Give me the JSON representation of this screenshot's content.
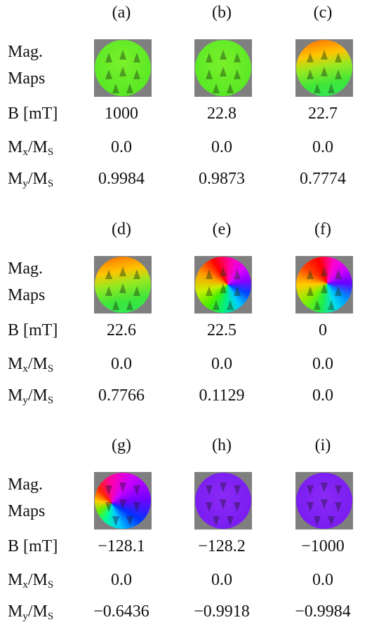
{
  "row_labels": {
    "maps": [
      "Mag.",
      "Maps"
    ],
    "b": "B [mT]",
    "mx": [
      "M",
      "x",
      "/M",
      "S"
    ],
    "my": [
      "M",
      "y",
      "/M",
      "S"
    ]
  },
  "blocks": [
    {
      "panels": [
        "(a)",
        "(b)",
        "(c)"
      ],
      "rows": [
        [
          "1000",
          "22.8",
          "22.7"
        ],
        [
          "0.0",
          "0.0",
          "0.0"
        ],
        [
          "0.9984",
          "0.9873",
          "0.7774"
        ]
      ]
    },
    {
      "panels": [
        "(d)",
        "(e)",
        "(f)"
      ],
      "rows": [
        [
          "22.6",
          "22.5",
          "0"
        ],
        [
          "0.0",
          "0.0",
          "0.0"
        ],
        [
          "0.7766",
          "0.1129",
          "0.0"
        ]
      ]
    },
    {
      "panels": [
        "(g)",
        "(h)",
        "(i)"
      ],
      "rows": [
        [
          "−128.1",
          "−128.2",
          "−1000"
        ],
        [
          "0.0",
          "0.0",
          "0.0"
        ],
        [
          "−0.6436",
          "−0.9918",
          "−0.9984"
        ]
      ]
    }
  ]
}
